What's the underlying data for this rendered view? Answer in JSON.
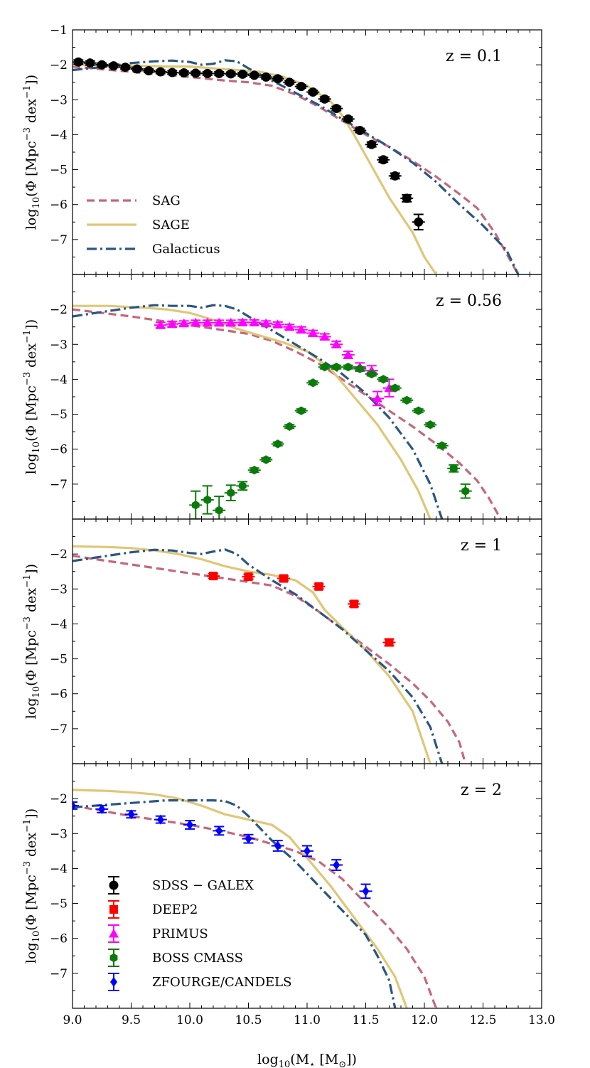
{
  "chart_data": {
    "type": "line",
    "title": "",
    "xlabel": "log10(M* [M⊙])",
    "ylabel": "log10(Φ [Mpc^-3 dex^-1])",
    "xlim": [
      9.0,
      13.0
    ],
    "ylim": [
      -8.0,
      -1.0
    ],
    "x_ticks": [
      "9.0",
      "9.5",
      "10.0",
      "10.5",
      "11.0",
      "11.5",
      "12.0",
      "12.5",
      "13.0"
    ],
    "y_ticks": [
      "-1",
      "-2",
      "-3",
      "-4",
      "-5",
      "-6",
      "-7"
    ],
    "colors": {
      "SAG": "#c4687a",
      "SAGE": "#e0c677",
      "Galacticus": "#2a5683",
      "SDSS-GALEX": "#000000",
      "DEEP2": "#ff0000",
      "PRIMUS": "#ff00ff",
      "BOSS CMASS": "#0a7a0a",
      "ZFOURGE/CANDELS": "#0000ff"
    },
    "model_legend": [
      {
        "name": "SAG",
        "label": "SAG",
        "style": "dashed"
      },
      {
        "name": "SAGE",
        "label": "SAGE",
        "style": "solid"
      },
      {
        "name": "Galacticus",
        "label": "Galacticus",
        "style": "dashdot"
      }
    ],
    "obs_legend": [
      {
        "name": "SDSS-GALEX",
        "label": "SDSS − GALEX",
        "marker": "circle"
      },
      {
        "name": "DEEP2",
        "label": "DEEP2",
        "marker": "square"
      },
      {
        "name": "PRIMUS",
        "label": "PRIMUS",
        "marker": "triangle"
      },
      {
        "name": "BOSS CMASS",
        "label": "BOSS CMASS",
        "marker": "hexagon"
      },
      {
        "name": "ZFOURGE/CANDELS",
        "label": "ZFOURGE/CANDELS",
        "marker": "diamond"
      }
    ],
    "panels": [
      {
        "redshift_label": "z = 0.1",
        "series": [
          {
            "name": "SAG",
            "x": [
              9.0,
              9.5,
              10.0,
              10.3,
              10.5,
              10.7,
              10.9,
              11.1,
              11.3,
              11.5,
              11.7,
              11.9,
              12.1,
              12.3,
              12.45,
              12.6,
              12.7,
              12.8
            ],
            "y": [
              -2.05,
              -2.2,
              -2.35,
              -2.45,
              -2.5,
              -2.6,
              -2.85,
              -3.2,
              -3.6,
              -4.0,
              -4.35,
              -4.75,
              -5.2,
              -5.7,
              -6.1,
              -6.8,
              -7.4,
              -8.0
            ]
          },
          {
            "name": "SAGE",
            "x": [
              9.0,
              9.3,
              9.5,
              9.8,
              10.0,
              10.2,
              10.4,
              10.6,
              10.8,
              11.0,
              11.2,
              11.3,
              11.4,
              11.5,
              11.6,
              11.7,
              11.8,
              11.9,
              12.0,
              12.1
            ],
            "y": [
              -2.0,
              -2.0,
              -2.02,
              -2.05,
              -2.05,
              -2.1,
              -2.15,
              -2.2,
              -2.35,
              -2.6,
              -3.05,
              -3.45,
              -4.0,
              -4.6,
              -5.2,
              -5.8,
              -6.3,
              -6.8,
              -7.5,
              -8.0
            ]
          },
          {
            "name": "Galacticus",
            "x": [
              9.0,
              9.3,
              9.5,
              9.7,
              9.85,
              10.0,
              10.1,
              10.2,
              10.3,
              10.4,
              10.5,
              10.7,
              10.9,
              11.1,
              11.3,
              11.5,
              11.7,
              11.9,
              12.1,
              12.3,
              12.5,
              12.7,
              12.8
            ],
            "y": [
              -2.15,
              -2.05,
              -1.95,
              -1.9,
              -1.88,
              -1.92,
              -2.0,
              -1.97,
              -1.87,
              -1.9,
              -2.1,
              -2.45,
              -2.8,
              -3.15,
              -3.55,
              -3.95,
              -4.35,
              -4.8,
              -5.35,
              -6.0,
              -6.6,
              -7.3,
              -8.0
            ]
          },
          {
            "name": "SDSS-GALEX",
            "marker": "circle",
            "x": [
              9.05,
              9.15,
              9.25,
              9.35,
              9.45,
              9.55,
              9.65,
              9.75,
              9.85,
              9.95,
              10.05,
              10.15,
              10.25,
              10.35,
              10.45,
              10.55,
              10.65,
              10.75,
              10.85,
              10.95,
              11.05,
              11.15,
              11.25,
              11.35,
              11.45,
              11.55,
              11.65,
              11.75,
              11.85,
              11.95
            ],
            "y": [
              -1.92,
              -1.95,
              -2.0,
              -2.03,
              -2.07,
              -2.12,
              -2.17,
              -2.2,
              -2.22,
              -2.23,
              -2.24,
              -2.25,
              -2.25,
              -2.26,
              -2.27,
              -2.3,
              -2.35,
              -2.4,
              -2.5,
              -2.62,
              -2.78,
              -2.98,
              -3.25,
              -3.55,
              -3.88,
              -4.28,
              -4.72,
              -5.18,
              -5.82,
              -6.5
            ],
            "err": [
              0.06,
              0.06,
              0.05,
              0.05,
              0.05,
              0.05,
              0.05,
              0.05,
              0.05,
              0.05,
              0.05,
              0.05,
              0.05,
              0.05,
              0.05,
              0.05,
              0.05,
              0.05,
              0.05,
              0.05,
              0.05,
              0.06,
              0.06,
              0.06,
              0.06,
              0.07,
              0.07,
              0.08,
              0.1,
              0.22
            ]
          }
        ]
      },
      {
        "redshift_label": "z = 0.56",
        "series": [
          {
            "name": "SAG",
            "x": [
              9.0,
              9.5,
              10.0,
              10.3,
              10.5,
              10.7,
              10.9,
              11.1,
              11.3,
              11.5,
              11.7,
              11.9,
              12.1,
              12.3,
              12.45,
              12.55,
              12.65
            ],
            "y": [
              -2.0,
              -2.2,
              -2.45,
              -2.6,
              -2.7,
              -2.9,
              -3.2,
              -3.55,
              -4.0,
              -4.45,
              -4.9,
              -5.35,
              -5.85,
              -6.4,
              -6.9,
              -7.4,
              -8.0
            ]
          },
          {
            "name": "SAGE",
            "x": [
              9.0,
              9.3,
              9.6,
              9.8,
              10.0,
              10.2,
              10.4,
              10.6,
              10.8,
              11.0,
              11.2,
              11.4,
              11.6,
              11.8,
              11.95,
              12.05
            ],
            "y": [
              -1.9,
              -1.9,
              -1.95,
              -2.0,
              -2.1,
              -2.3,
              -2.55,
              -2.75,
              -2.95,
              -3.2,
              -3.7,
              -4.5,
              -5.3,
              -6.3,
              -7.2,
              -8.0
            ]
          },
          {
            "name": "Galacticus",
            "x": [
              9.0,
              9.3,
              9.5,
              9.7,
              9.85,
              10.0,
              10.1,
              10.2,
              10.3,
              10.4,
              10.5,
              10.7,
              10.9,
              11.1,
              11.3,
              11.5,
              11.7,
              11.9,
              12.05,
              12.15
            ],
            "y": [
              -2.2,
              -2.05,
              -1.95,
              -1.88,
              -1.9,
              -1.9,
              -1.95,
              -1.88,
              -1.9,
              -2.0,
              -2.2,
              -2.6,
              -3.0,
              -3.4,
              -3.85,
              -4.4,
              -5.1,
              -6.0,
              -7.0,
              -8.0
            ]
          },
          {
            "name": "PRIMUS",
            "marker": "triangle",
            "x": [
              9.75,
              9.85,
              9.95,
              10.05,
              10.15,
              10.25,
              10.35,
              10.45,
              10.55,
              10.65,
              10.75,
              10.85,
              10.95,
              11.05,
              11.15,
              11.25,
              11.35,
              11.45,
              11.55,
              11.6,
              11.7
            ],
            "y": [
              -2.45,
              -2.42,
              -2.4,
              -2.38,
              -2.38,
              -2.38,
              -2.38,
              -2.37,
              -2.37,
              -2.4,
              -2.43,
              -2.5,
              -2.58,
              -2.68,
              -2.78,
              -3.0,
              -3.3,
              -3.65,
              -3.75,
              -4.55,
              -4.25
            ],
            "err": [
              0.08,
              0.08,
              0.07,
              0.07,
              0.07,
              0.07,
              0.07,
              0.07,
              0.07,
              0.07,
              0.07,
              0.07,
              0.08,
              0.08,
              0.08,
              0.09,
              0.1,
              0.12,
              0.14,
              0.2,
              0.25
            ]
          },
          {
            "name": "BOSS CMASS",
            "marker": "hexagon",
            "x": [
              10.05,
              10.15,
              10.25,
              10.35,
              10.45,
              10.55,
              10.65,
              10.75,
              10.85,
              10.95,
              11.05,
              11.15,
              11.25,
              11.35,
              11.45,
              11.55,
              11.65,
              11.75,
              11.85,
              11.95,
              12.05,
              12.15,
              12.25,
              12.35
            ],
            "y": [
              -7.6,
              -7.45,
              -7.75,
              -7.25,
              -7.05,
              -6.6,
              -6.3,
              -5.85,
              -5.35,
              -4.9,
              -4.1,
              -3.65,
              -3.65,
              -3.65,
              -3.7,
              -3.85,
              -4.0,
              -4.25,
              -4.6,
              -4.9,
              -5.3,
              -5.9,
              -6.55,
              -7.2
            ],
            "err": [
              0.4,
              0.4,
              0.4,
              0.22,
              0.12,
              0.06,
              0.05,
              0.05,
              0.05,
              0.05,
              0.05,
              0.05,
              0.05,
              0.05,
              0.05,
              0.05,
              0.05,
              0.05,
              0.05,
              0.05,
              0.05,
              0.06,
              0.1,
              0.2
            ]
          }
        ]
      },
      {
        "redshift_label": "z = 1",
        "series": [
          {
            "name": "SAG",
            "x": [
              9.0,
              9.5,
              10.0,
              10.3,
              10.5,
              10.7,
              10.9,
              11.1,
              11.3,
              11.5,
              11.7,
              11.9,
              12.05,
              12.2,
              12.3,
              12.35
            ],
            "y": [
              -2.05,
              -2.3,
              -2.55,
              -2.7,
              -2.8,
              -2.9,
              -3.2,
              -3.65,
              -4.15,
              -4.65,
              -5.15,
              -5.7,
              -6.2,
              -6.8,
              -7.4,
              -8.0
            ]
          },
          {
            "name": "SAGE",
            "x": [
              9.0,
              9.3,
              9.5,
              9.7,
              9.9,
              10.1,
              10.3,
              10.5,
              10.7,
              10.9,
              11.05,
              11.15,
              11.3,
              11.5,
              11.7,
              11.9,
              12.05
            ],
            "y": [
              -1.78,
              -1.8,
              -1.83,
              -1.9,
              -2.0,
              -2.15,
              -2.35,
              -2.5,
              -2.6,
              -2.75,
              -3.1,
              -3.6,
              -4.1,
              -4.75,
              -5.5,
              -6.5,
              -8.0
            ]
          },
          {
            "name": "Galacticus",
            "x": [
              9.0,
              9.3,
              9.5,
              9.7,
              9.85,
              10.0,
              10.1,
              10.2,
              10.3,
              10.4,
              10.5,
              10.7,
              10.9,
              11.1,
              11.3,
              11.5,
              11.7,
              11.9,
              12.05,
              12.15
            ],
            "y": [
              -2.2,
              -2.05,
              -1.95,
              -1.88,
              -1.9,
              -1.97,
              -2.0,
              -1.93,
              -1.87,
              -2.0,
              -2.3,
              -2.75,
              -3.15,
              -3.65,
              -4.15,
              -4.75,
              -5.35,
              -6.1,
              -6.95,
              -8.0
            ]
          },
          {
            "name": "DEEP2",
            "marker": "square",
            "x": [
              10.2,
              10.5,
              10.8,
              11.1,
              11.4,
              11.7
            ],
            "y": [
              -2.63,
              -2.65,
              -2.7,
              -2.93,
              -3.43,
              -4.53
            ],
            "err": [
              0.07,
              0.07,
              0.07,
              0.07,
              0.08,
              0.1
            ]
          }
        ]
      },
      {
        "redshift_label": "z = 2",
        "series": [
          {
            "name": "SAG",
            "x": [
              9.0,
              9.5,
              10.0,
              10.3,
              10.5,
              10.7,
              10.9,
              11.1,
              11.3,
              11.5,
              11.7,
              11.85,
              12.0,
              12.1
            ],
            "y": [
              -2.2,
              -2.5,
              -2.75,
              -2.95,
              -3.1,
              -3.3,
              -3.5,
              -3.8,
              -4.3,
              -5.0,
              -5.7,
              -6.3,
              -7.1,
              -8.0
            ]
          },
          {
            "name": "SAGE",
            "x": [
              9.0,
              9.3,
              9.5,
              9.7,
              9.9,
              10.1,
              10.3,
              10.5,
              10.7,
              10.85,
              11.0,
              11.2,
              11.4,
              11.6,
              11.75,
              11.85
            ],
            "y": [
              -1.75,
              -1.78,
              -1.82,
              -1.88,
              -2.0,
              -2.2,
              -2.45,
              -2.6,
              -2.75,
              -3.1,
              -3.7,
              -4.5,
              -5.4,
              -6.3,
              -7.1,
              -8.0
            ]
          },
          {
            "name": "Galacticus",
            "x": [
              9.0,
              9.2,
              9.4,
              9.6,
              9.8,
              10.0,
              10.2,
              10.3,
              10.4,
              10.5,
              10.7,
              10.9,
              11.1,
              11.3,
              11.5,
              11.6,
              11.7,
              11.75
            ],
            "y": [
              -2.25,
              -2.2,
              -2.15,
              -2.1,
              -2.05,
              -2.05,
              -2.05,
              -2.07,
              -2.2,
              -2.5,
              -3.2,
              -3.8,
              -4.5,
              -5.2,
              -5.9,
              -6.5,
              -7.2,
              -8.0
            ]
          },
          {
            "name": "ZFOURGE/CANDELS",
            "marker": "diamond",
            "x": [
              9.0,
              9.25,
              9.5,
              9.75,
              10.0,
              10.25,
              10.5,
              10.75,
              11.0,
              11.25,
              11.5
            ],
            "y": [
              -2.2,
              -2.3,
              -2.45,
              -2.6,
              -2.75,
              -2.92,
              -3.15,
              -3.35,
              -3.5,
              -3.9,
              -4.65
            ],
            "err": [
              0.1,
              0.1,
              0.1,
              0.1,
              0.12,
              0.12,
              0.12,
              0.15,
              0.15,
              0.15,
              0.2
            ]
          }
        ]
      }
    ]
  }
}
